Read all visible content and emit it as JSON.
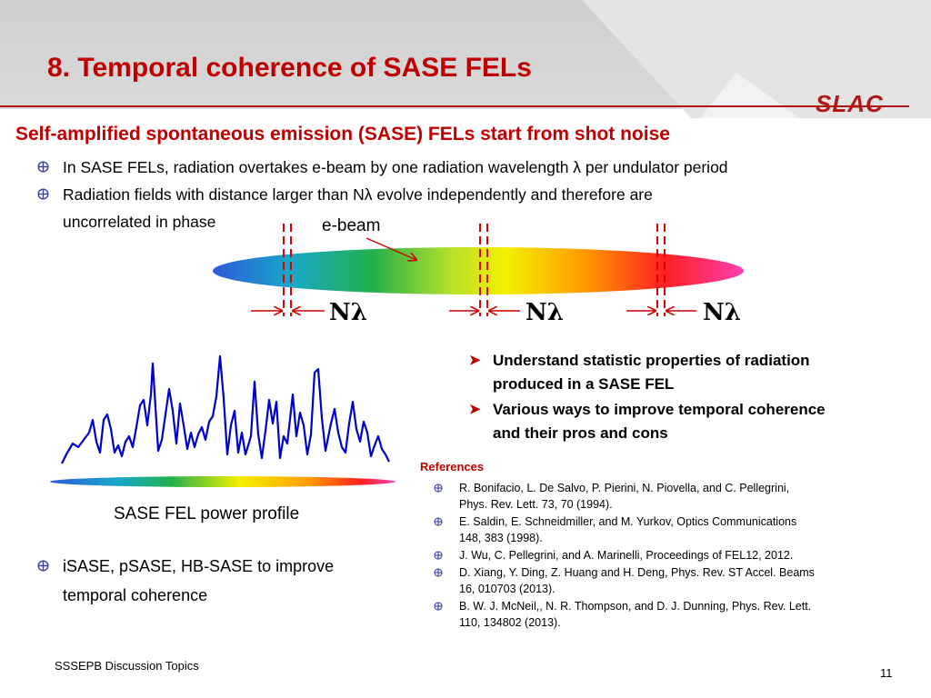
{
  "header": {
    "title": "8.  Temporal coherence of SASE FELs",
    "logo_text": "SLAC"
  },
  "subtitle": "Self-amplified spontaneous emission (SASE) FELs start from shot noise",
  "bullets": [
    "In SASE FELs, radiation overtakes e-beam by one radiation wavelength λ per undulator period",
    "Radiation fields with distance larger than Nλ  evolve independently and therefore are",
    "uncorrelated in phase"
  ],
  "diagram": {
    "ebeam_label": "e-beam",
    "slippage_labels": [
      "Nλ",
      "Nλ",
      "Nλ"
    ]
  },
  "power_profile": {
    "caption": "SASE FEL power profile"
  },
  "lower_bullet": [
    "iSASE, pSASE, HB-SASE to improve",
    "temporal coherence"
  ],
  "goals": [
    [
      "Understand statistic properties of radiation",
      "produced in a SASE FEL"
    ],
    [
      "Various ways to improve temporal coherence",
      "and their pros and cons"
    ]
  ],
  "references": {
    "title": "References",
    "items": [
      [
        "R. Bonifacio, L. De Salvo, P. Pierini, N. Piovella, and C. Pellegrini,",
        "Phys. Rev. Lett. 73, 70 (1994)."
      ],
      [
        "E. Saldin, E. Schneidmiller, and M. Yurkov, Optics Communications",
        "148, 383 (1998)."
      ],
      [
        "J. Wu, C. Pellegrini, and A. Marinelli, Proceedings of FEL12, 2012."
      ],
      [
        "D. Xiang, Y. Ding, Z. Huang and H. Deng, Phys. Rev. ST Accel. Beams",
        "16, 010703 (2013)."
      ],
      [
        "B. W. J. McNeil,, N. R. Thompson, and D. J. Dunning, Phys. Rev. Lett.",
        "110, 134802 (2013)."
      ]
    ]
  },
  "footer": {
    "left": "SSSEPB Discussion Topics",
    "page": "11"
  },
  "colors": {
    "accent": "#c00000",
    "profile_line": "#0000cc"
  }
}
